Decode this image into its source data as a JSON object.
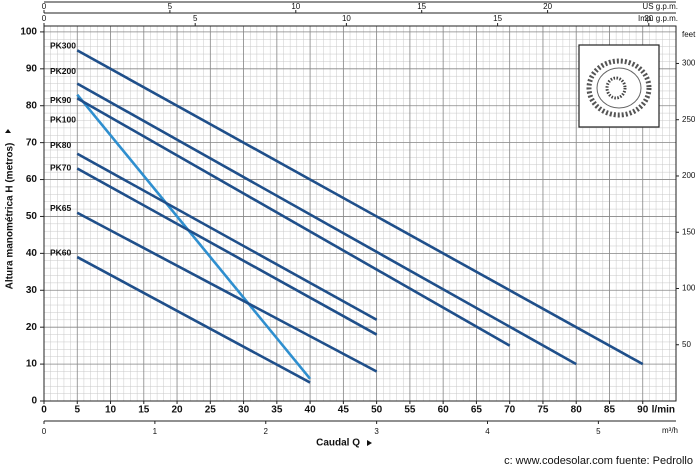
{
  "chart_data": {
    "type": "line",
    "y_label": "Altura manométrica H (metros)",
    "x_label": "Caudal Q",
    "x_unit": "l/min",
    "source": "c: www.codesolar.com  fuente: Pedrollo",
    "xlim": [
      0,
      95
    ],
    "xticks": [
      0,
      5,
      10,
      15,
      20,
      25,
      30,
      35,
      40,
      45,
      50,
      55,
      60,
      65,
      70,
      75,
      80,
      85,
      90
    ],
    "ylim": [
      0,
      101.6
    ],
    "yticks": [
      0,
      10,
      20,
      30,
      40,
      50,
      60,
      70,
      80,
      90,
      100
    ],
    "grid": true,
    "minor_xstep": 1,
    "minor_ystep": 2,
    "top_axis_us": {
      "label": "US g.p.m.",
      "lim": [
        0,
        25.1
      ],
      "ticks": [
        0,
        5,
        10,
        15,
        20
      ]
    },
    "top_axis_imp": {
      "label": "Imp. g.p.m.",
      "lim": [
        0,
        20.9
      ],
      "ticks": [
        0,
        5,
        10,
        15,
        20
      ]
    },
    "bottom_axis_m3h": {
      "label": "m³/h",
      "lim": [
        0,
        5.7
      ],
      "ticks": [
        0,
        1,
        2,
        3,
        4,
        5
      ]
    },
    "right_axis_feet": {
      "label": "feet",
      "lim": [
        0,
        333.3
      ],
      "ticks": [
        50,
        100,
        150,
        200,
        250,
        300
      ]
    },
    "series": [
      {
        "name": "PK300",
        "color": "#1f4f8a",
        "x": [
          5,
          90
        ],
        "values": [
          95,
          10
        ]
      },
      {
        "name": "PK200",
        "color": "#1f4f8a",
        "x": [
          5,
          80
        ],
        "values": [
          86,
          10
        ]
      },
      {
        "name": "PK90",
        "color": "#2f8fcf",
        "x": [
          5,
          40
        ],
        "values": [
          83,
          6
        ]
      },
      {
        "name": "PK100",
        "color": "#1f4f8a",
        "x": [
          5,
          70
        ],
        "values": [
          82,
          15
        ]
      },
      {
        "name": "PK80",
        "color": "#1f4f8a",
        "x": [
          5,
          50
        ],
        "values": [
          67,
          22
        ]
      },
      {
        "name": "PK70",
        "color": "#1f4f8a",
        "x": [
          5,
          50
        ],
        "values": [
          63,
          18
        ]
      },
      {
        "name": "PK65",
        "color": "#1f4f8a",
        "x": [
          5,
          50
        ],
        "values": [
          51,
          8
        ]
      },
      {
        "name": "PK60",
        "color": "#1f4f8a",
        "x": [
          5,
          40
        ],
        "values": [
          39,
          5
        ]
      }
    ]
  }
}
